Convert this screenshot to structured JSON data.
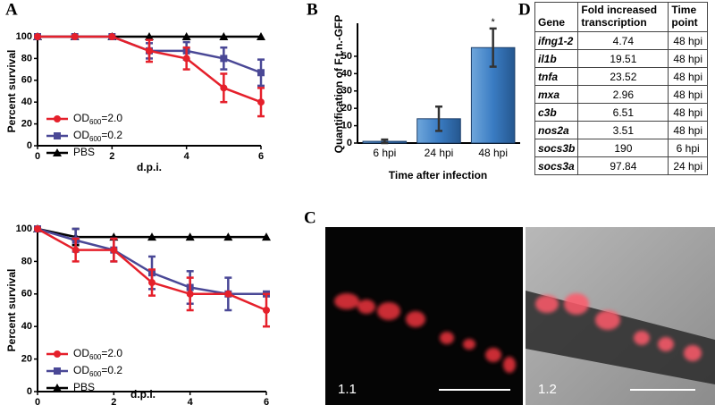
{
  "panels": {
    "a": "A",
    "b": "B",
    "c": "C",
    "d": "D"
  },
  "chart_data": [
    {
      "type": "line",
      "xlabel": "d.p.i.",
      "ylabel": "Percent survival",
      "x": [
        0,
        1,
        2,
        3,
        4,
        5,
        6
      ],
      "xlim": [
        0,
        6
      ],
      "xticks": [
        0,
        2,
        4,
        6
      ],
      "ylim": [
        0,
        100
      ],
      "yticks": [
        0,
        20,
        40,
        60,
        80,
        100
      ],
      "grid": false,
      "legend": "lower left",
      "series": [
        {
          "name": "OD600=2.0",
          "color": "#e5202b",
          "marker": "circle",
          "values": [
            100,
            100,
            100,
            87,
            80,
            53,
            40
          ],
          "errors": [
            0,
            0,
            0,
            10,
            10,
            13,
            13
          ]
        },
        {
          "name": "OD600=0.2",
          "color": "#4a4896",
          "marker": "square",
          "values": [
            100,
            100,
            100,
            87,
            87,
            80,
            67
          ],
          "errors": [
            0,
            0,
            0,
            7,
            8,
            10,
            12
          ]
        },
        {
          "name": "PBS",
          "color": "#000000",
          "marker": "triangle",
          "values": [
            100,
            100,
            100,
            100,
            100,
            100,
            100
          ],
          "errors": [
            0,
            0,
            0,
            0,
            0,
            0,
            0
          ]
        }
      ]
    },
    {
      "type": "line",
      "xlabel": "d.p.i.",
      "ylabel": "Percent survival",
      "x": [
        0,
        1,
        2,
        3,
        4,
        5,
        6
      ],
      "xlim": [
        0,
        6
      ],
      "xticks": [
        0,
        2,
        4,
        6
      ],
      "ylim": [
        0,
        100
      ],
      "yticks": [
        0,
        20,
        40,
        60,
        80,
        100
      ],
      "grid": false,
      "legend": "lower left",
      "series": [
        {
          "name": "OD600=2.0",
          "color": "#e5202b",
          "marker": "circle",
          "values": [
            100,
            87,
            87,
            67,
            60,
            60,
            50
          ],
          "errors": [
            0,
            7,
            7,
            8,
            10,
            0,
            10
          ]
        },
        {
          "name": "OD600=0.2",
          "color": "#4a4896",
          "marker": "square",
          "values": [
            100,
            93,
            87,
            73,
            64,
            60,
            60
          ],
          "errors": [
            0,
            7,
            7,
            10,
            10,
            10,
            0
          ]
        },
        {
          "name": "PBS",
          "color": "#000000",
          "marker": "triangle",
          "values": [
            100,
            95,
            95,
            95,
            95,
            95,
            95
          ],
          "errors": [
            0,
            5,
            0,
            0,
            0,
            0,
            0
          ]
        }
      ]
    },
    {
      "type": "bar",
      "xlabel": "Time after infection",
      "ylabel": "Quantification of F.t.n.-GFP",
      "categories": [
        "6 hpi",
        "24 hpi",
        "48 hpi"
      ],
      "values": [
        1,
        14,
        55
      ],
      "errors": [
        1,
        7,
        11
      ],
      "color": "#3a7cc3",
      "ylim": [
        0,
        68
      ],
      "yticks": [
        0,
        10,
        20,
        30,
        40,
        50
      ],
      "grid": false,
      "annotations": [
        {
          "text": "*",
          "category": "48 hpi"
        }
      ]
    }
  ],
  "table": {
    "header": [
      "Gene",
      "Fold increased transcription",
      "Time point"
    ],
    "rows": [
      [
        "ifng1-2",
        4.74,
        "48 hpi"
      ],
      [
        "il1b",
        19.51,
        "48 hpi"
      ],
      [
        "tnfa",
        23.52,
        "48 hpi"
      ],
      [
        "mxa",
        2.96,
        "48 hpi"
      ],
      [
        "c3b",
        6.51,
        "48 hpi"
      ],
      [
        "nos2a",
        3.51,
        "48 hpi"
      ],
      [
        "socs3b",
        190,
        "6 hpi"
      ],
      [
        "socs3a",
        97.84,
        "24 hpi"
      ]
    ]
  },
  "images": [
    {
      "label": "1.1"
    },
    {
      "label": "1.2"
    }
  ]
}
